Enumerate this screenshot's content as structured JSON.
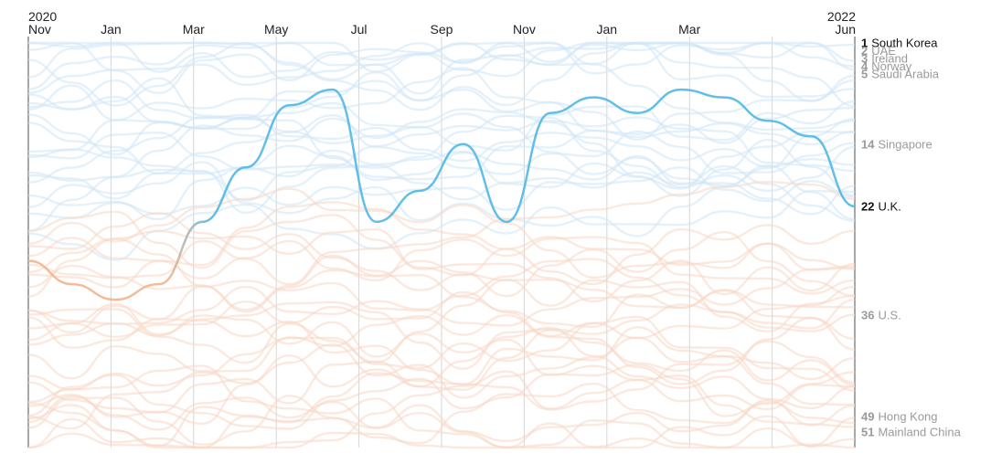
{
  "chart_data": {
    "type": "line",
    "title": "",
    "xlabel": "",
    "ylabel": "",
    "year_labels": {
      "start": "2020",
      "end": "2022"
    },
    "x_ticks": [
      "Nov",
      "Jan",
      "Mar",
      "May",
      "Jul",
      "Sep",
      "Nov",
      "Jan",
      "Mar",
      "",
      "Jun"
    ],
    "y_rank_range": [
      1,
      53
    ],
    "y_direction": "rank 1 at top",
    "grid": "vertical lines at each month tick",
    "colors": {
      "highlight_top": "#4fb8e8",
      "highlight_bottom": "#f2b48e",
      "background_top": "#cfe6f6",
      "background_bottom": "#f7d7c4",
      "gridline": "#d6d6d6",
      "label_highlight": "#111111",
      "label_muted": "#9a9a9a"
    },
    "highlighted_series": {
      "name": "U.K.",
      "ranks": [
        29,
        32,
        34,
        32,
        24,
        17,
        9,
        7,
        24,
        20,
        14,
        24,
        10,
        8,
        10,
        7,
        8,
        11,
        13,
        22
      ]
    },
    "end_labels": [
      {
        "rank": "1",
        "name": "South Korea",
        "highlight": true
      },
      {
        "rank": "2",
        "name": "UAE",
        "highlight": false
      },
      {
        "rank": "3",
        "name": "Ireland",
        "highlight": false
      },
      {
        "rank": "4",
        "name": "Norway",
        "highlight": false
      },
      {
        "rank": "5",
        "name": "Saudi Arabia",
        "highlight": false
      },
      {
        "rank": "14",
        "name": "Singapore",
        "highlight": false
      },
      {
        "rank": "22",
        "name": "U.K.",
        "highlight": true
      },
      {
        "rank": "36",
        "name": "U.S.",
        "highlight": false
      },
      {
        "rank": "49",
        "name": "Hong Kong",
        "highlight": false
      },
      {
        "rank": "51",
        "name": "Mainland China",
        "highlight": false
      }
    ],
    "background_series_count": 53
  }
}
